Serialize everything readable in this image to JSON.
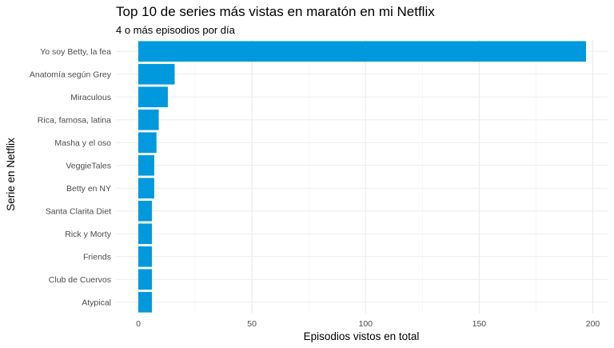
{
  "chart_data": {
    "type": "bar",
    "orientation": "horizontal",
    "title": "Top 10 de series más vistas en maratón en mi Netflix",
    "subtitle": "4 o más episodios por día",
    "xlabel": "Episodios vistos en total",
    "ylabel": "Serie en Netflix",
    "categories": [
      "Yo soy Betty, la fea",
      "Anatomía según Grey",
      "Miraculous",
      "Rica, famosa, latina",
      "Masha y el oso",
      "VeggieTales",
      "Betty en NY",
      "Santa Clarita Diet",
      "Rick y Morty",
      "Friends",
      "Club de Cuervos",
      "Atypical"
    ],
    "values": [
      197,
      16,
      13,
      9,
      8,
      7,
      7,
      6,
      6,
      6,
      6,
      6
    ],
    "xlim": [
      0,
      207
    ],
    "xticks": [
      0,
      50,
      100,
      150,
      200
    ],
    "grid": true,
    "bar_color": "#0099DD"
  }
}
